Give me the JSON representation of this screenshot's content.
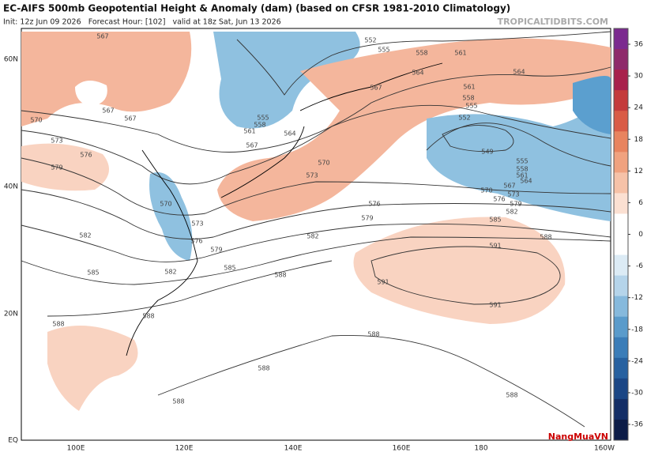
{
  "header": {
    "title": "EC-AIFS 500mb Geopotential Height & Anomaly (dam) (based on CFSR 1981-2010 Climatology)",
    "subtitle": "Init: 12z Jun 09 2026   Forecast Hour: [102]   valid at 18z Sat, Jun 13 2026",
    "source": "TROPICALTIDBITS.COM"
  },
  "map": {
    "lat_labels": [
      "60N",
      "40N",
      "20N",
      "EQ"
    ],
    "lon_labels": [
      "100E",
      "120E",
      "140E",
      "160E",
      "180",
      "160W"
    ],
    "contour_labels": [
      567,
      567,
      567,
      570,
      573,
      576,
      579,
      582,
      585,
      588,
      570,
      573,
      576,
      579,
      582,
      585,
      588,
      588,
      582,
      579,
      576,
      573,
      570,
      567,
      564,
      561,
      558,
      555,
      567,
      552,
      555,
      558,
      561,
      564,
      564,
      561,
      558,
      555,
      552,
      549,
      555,
      558,
      561,
      564,
      567,
      570,
      573,
      576,
      579,
      582,
      585,
      588,
      591,
      591,
      591,
      588,
      588,
      588,
      588
    ]
  },
  "colorbar": {
    "ticks": [
      36,
      30,
      24,
      18,
      12,
      6,
      0,
      -6,
      -12,
      -18,
      -24,
      -30,
      -36
    ]
  },
  "logo": {
    "text": "NangMuaVN"
  }
}
